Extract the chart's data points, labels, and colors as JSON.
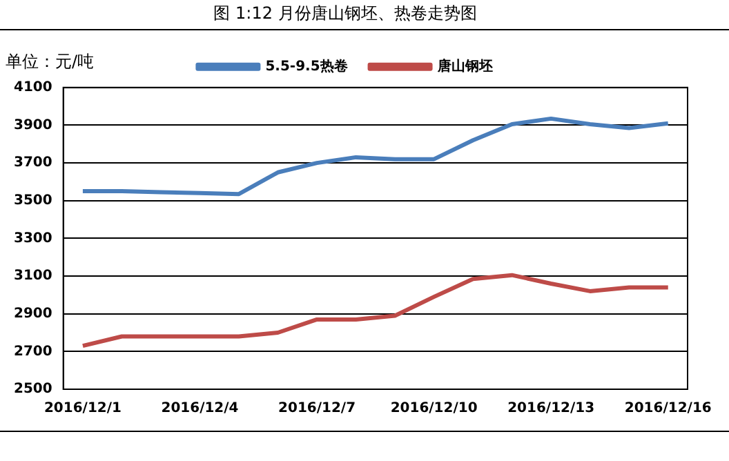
{
  "chart_data": {
    "type": "line",
    "title": "图 1:12 月份唐山钢坯、热卷走势图",
    "annotations": [
      "单位：元/吨"
    ],
    "categories": [
      "2016/12/1",
      null,
      null,
      "2016/12/4",
      null,
      null,
      "2016/12/7",
      null,
      null,
      "2016/12/10",
      null,
      null,
      "2016/12/13",
      null,
      null,
      "2016/12/16"
    ],
    "series": [
      {
        "name": "5.5-9.5热卷",
        "color": "#4a7ebb",
        "values": [
          3550,
          3550,
          3545,
          3540,
          3535,
          3650,
          3700,
          3730,
          3720,
          3720,
          3820,
          3905,
          3935,
          3905,
          3885,
          3910
        ]
      },
      {
        "name": "唐山钢坯",
        "color": "#be4b48",
        "values": [
          2730,
          2780,
          2780,
          2780,
          2780,
          2800,
          2870,
          2870,
          2890,
          2990,
          3085,
          3105,
          3060,
          3020,
          3040,
          3040
        ]
      }
    ],
    "ylim": [
      2500,
      4100
    ],
    "yticks": [
      2500,
      2700,
      2900,
      3100,
      3300,
      3500,
      3700,
      3900,
      4100
    ],
    "grid": "y",
    "legend": "top",
    "marker": "none",
    "line_style": "solid"
  }
}
